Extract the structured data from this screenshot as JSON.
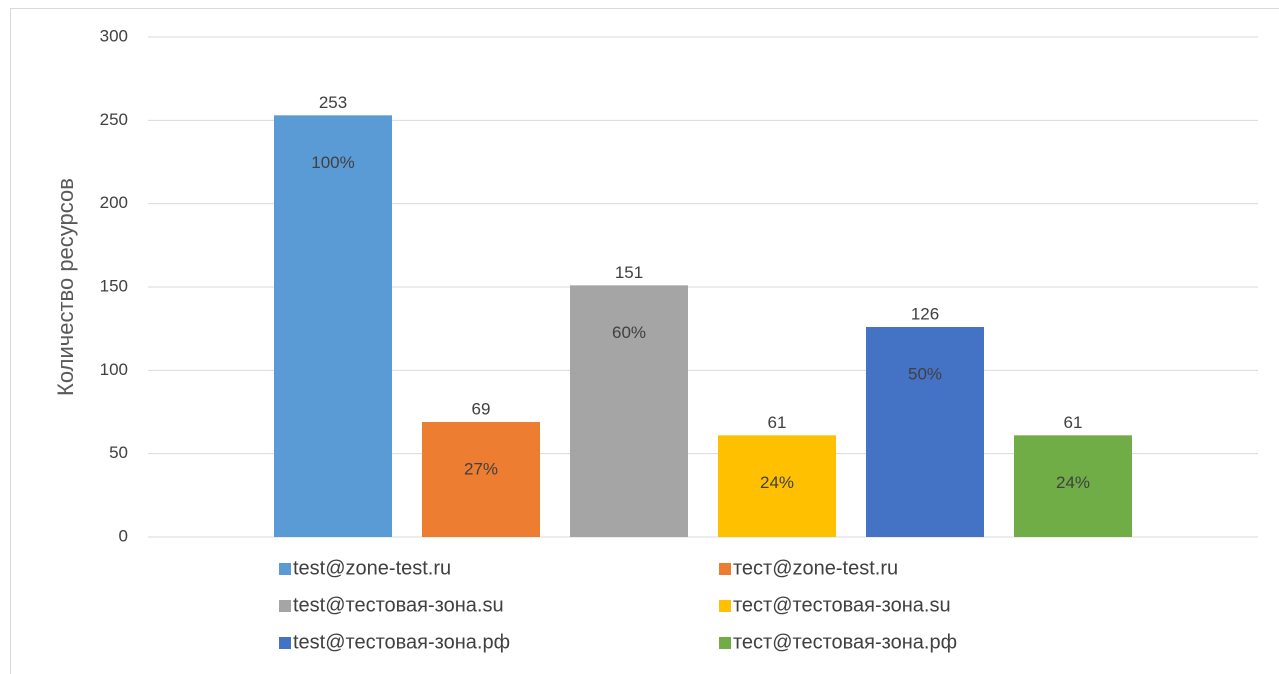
{
  "chart_data": {
    "type": "bar",
    "y_label": "Количество ресурсов",
    "ylim": [
      0,
      300
    ],
    "yticks": [
      0,
      50,
      100,
      150,
      200,
      250,
      300
    ],
    "grid": true,
    "legend": "bottom",
    "series": [
      {
        "name": "test@zone-test.ru",
        "color": "#5b9bd5",
        "values": [
          253
        ],
        "share": [
          100
        ],
        "share_labels": [
          "100%"
        ]
      },
      {
        "name": "тест@zone-test.ru",
        "color": "#ed7d31",
        "values": [
          69
        ],
        "share": [
          27
        ],
        "share_labels": [
          "27%"
        ]
      },
      {
        "name": "test@тестовая-зона.su",
        "color": "#a5a5a5",
        "values": [
          151
        ],
        "share": [
          60
        ],
        "share_labels": [
          "60%"
        ]
      },
      {
        "name": "тест@тестовая-зона.su",
        "color": "#ffc000",
        "values": [
          61
        ],
        "share": [
          24
        ],
        "share_labels": [
          "24%"
        ]
      },
      {
        "name": "test@тестовая-зона.рф",
        "color": "#4472c4",
        "values": [
          126
        ],
        "share": [
          50
        ],
        "share_labels": [
          "50%"
        ]
      },
      {
        "name": "тест@тестовая-зона.рф",
        "color": "#70ad47",
        "values": [
          61
        ],
        "share": [
          24
        ],
        "share_labels": [
          "24%"
        ]
      }
    ]
  }
}
